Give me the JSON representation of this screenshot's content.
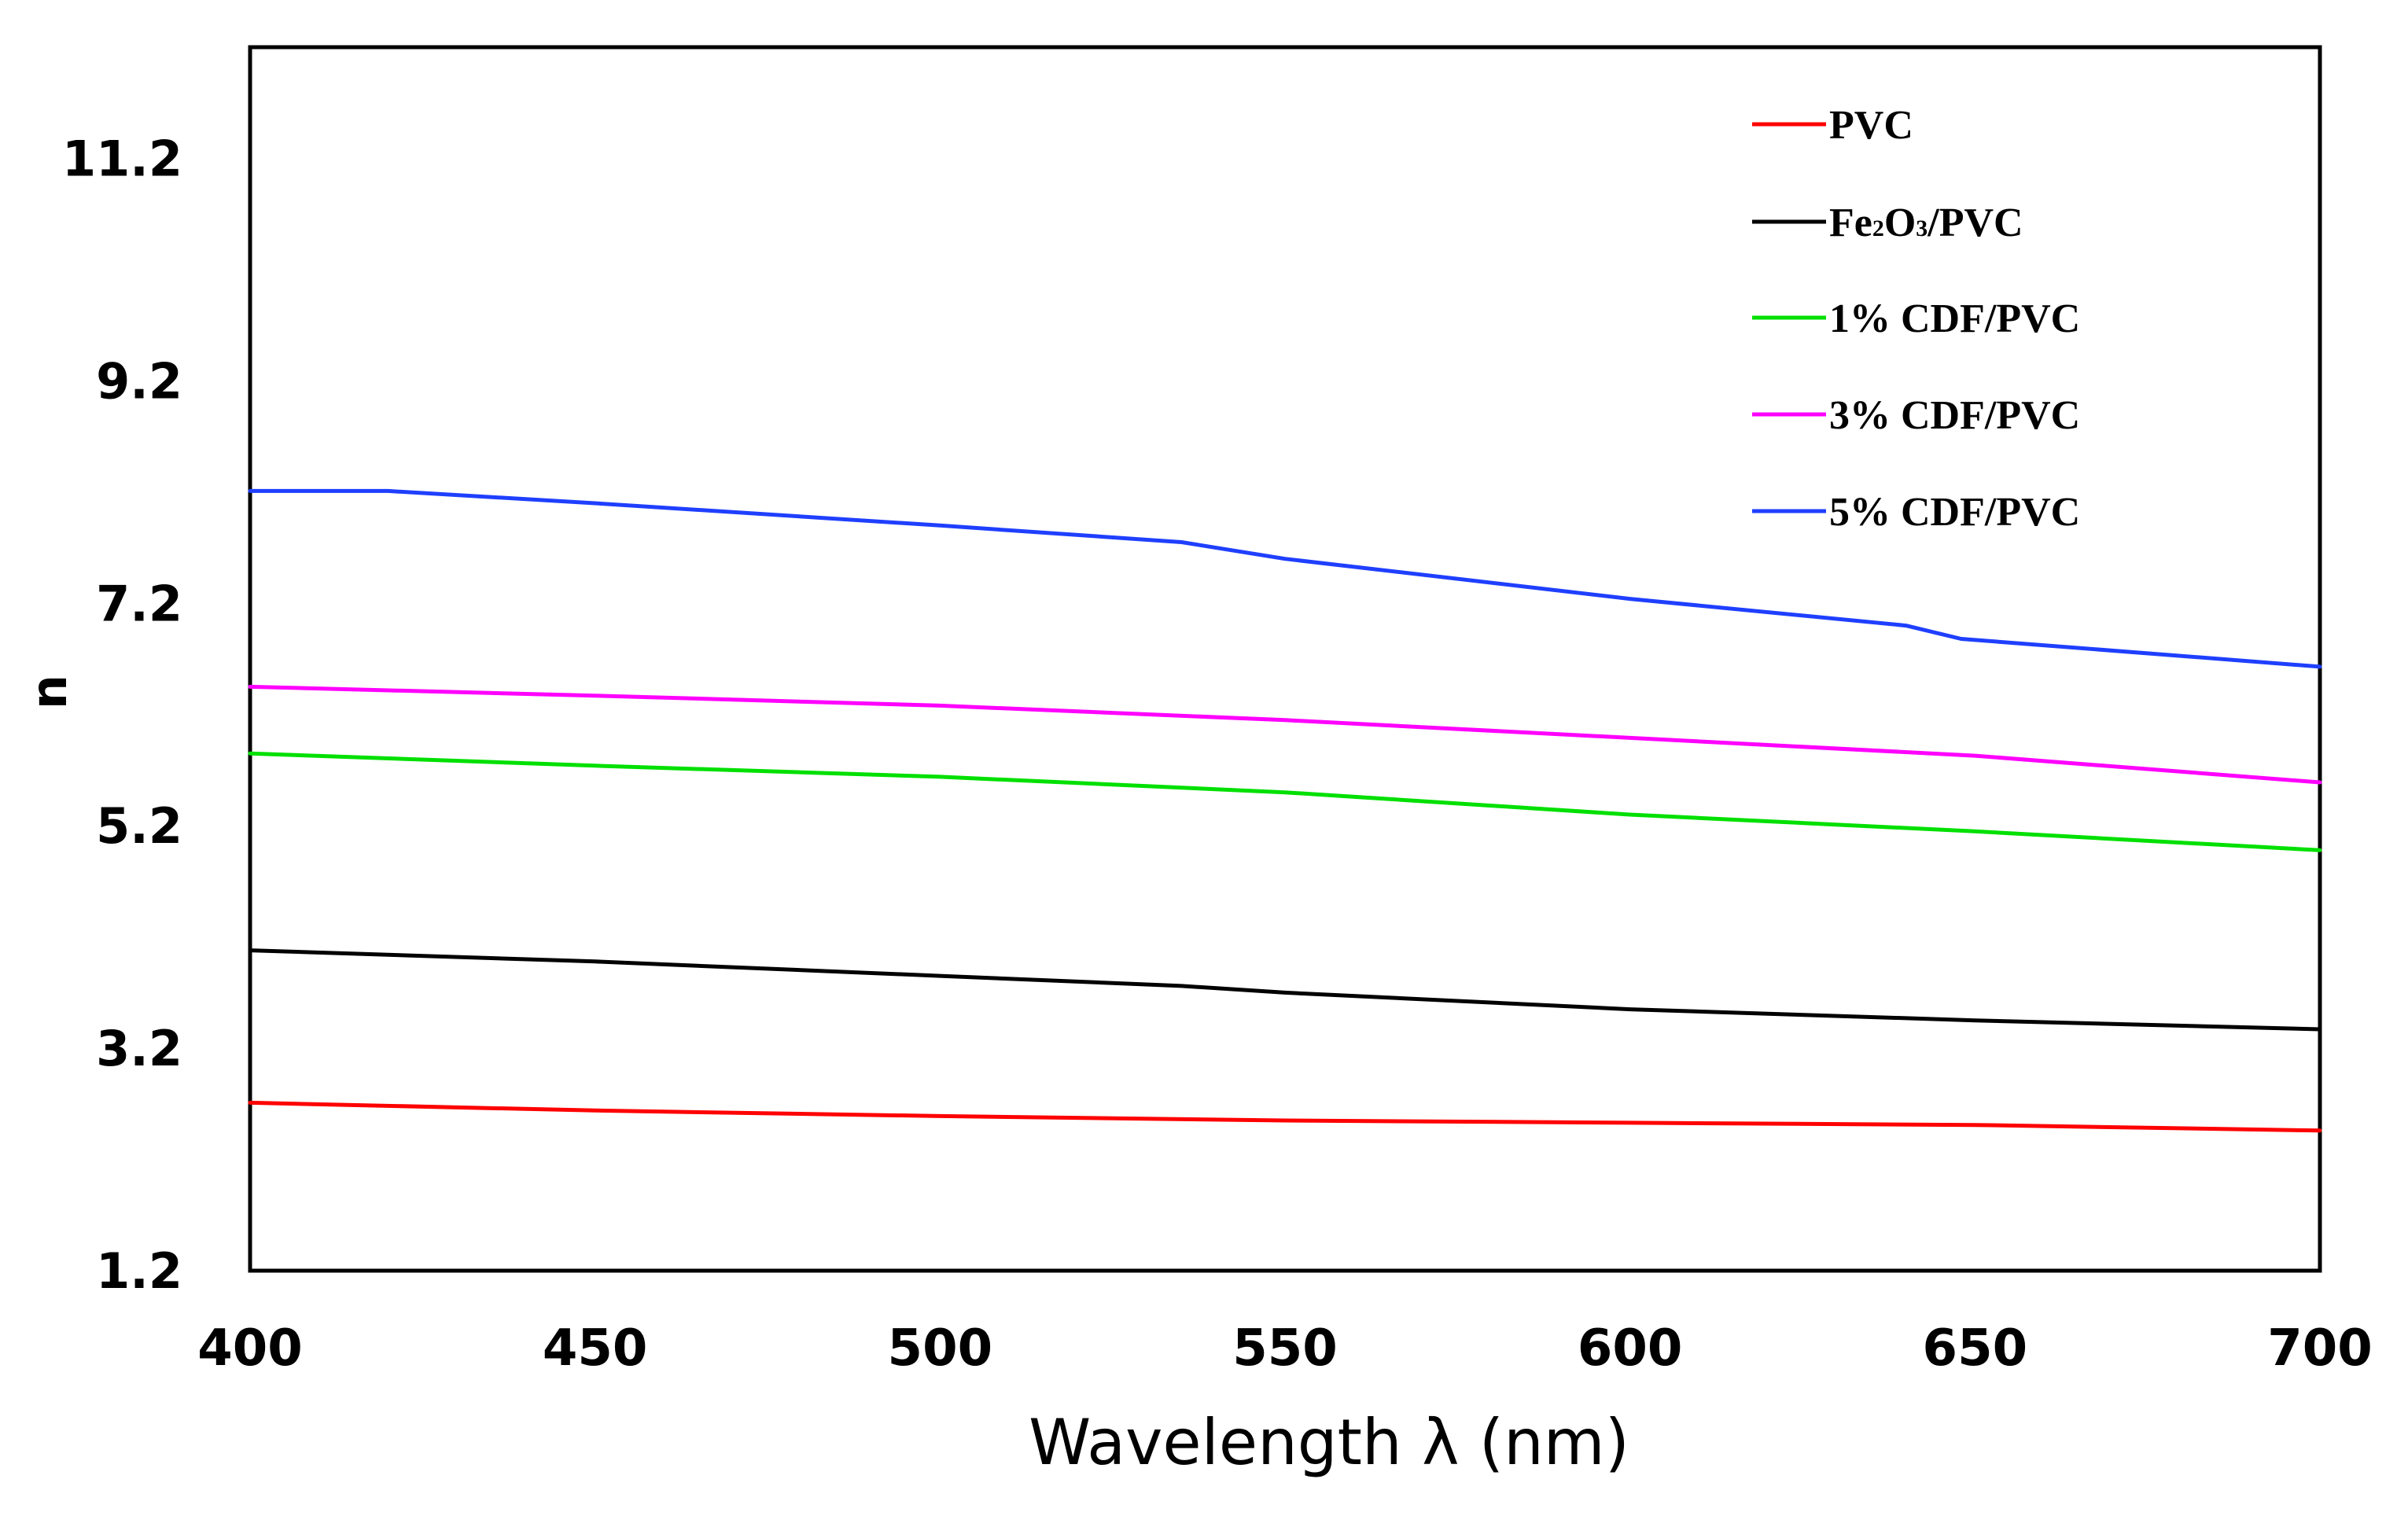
{
  "chart_data": {
    "type": "line",
    "title": "",
    "xlabel": "Wavelength  λ (nm)",
    "ylabel": "n",
    "xlim": [
      400,
      700
    ],
    "ylim": [
      1.2,
      12.2
    ],
    "x_ticks": [
      400,
      450,
      500,
      550,
      600,
      650,
      700
    ],
    "y_ticks": [
      1.2,
      3.2,
      5.2,
      7.2,
      9.2,
      11.2
    ],
    "x_tick_labels": [
      "400",
      "450",
      "500",
      "550",
      "600",
      "650",
      "700"
    ],
    "y_tick_labels": [
      "1.2",
      "3.2",
      "5.2",
      "7.2",
      "9.2",
      "11.2"
    ],
    "grid": false,
    "legend_position": "top-right",
    "series": [
      {
        "name": "PVC",
        "label_main": "PVC",
        "label_sub": "",
        "label_rest": "",
        "color": "#ff0000",
        "x": [
          400,
          450,
          500,
          550,
          600,
          650,
          700
        ],
        "values": [
          2.71,
          2.64,
          2.59,
          2.55,
          2.53,
          2.51,
          2.46
        ]
      },
      {
        "name": "Fe2O3/PVC",
        "label_main": "Fe",
        "label_sub": "2",
        "label_rest": "O",
        "label_sub2": "3",
        "label_tail": "/PVC",
        "color": "#000000",
        "x": [
          400,
          450,
          500,
          535,
          550,
          600,
          650,
          700
        ],
        "values": [
          4.08,
          3.98,
          3.85,
          3.76,
          3.7,
          3.55,
          3.45,
          3.37
        ]
      },
      {
        "name": "1% CDF/PVC",
        "label_main": "1% CDF/PVC",
        "label_sub": "",
        "label_rest": "",
        "color": "#00e000",
        "x": [
          400,
          450,
          500,
          550,
          600,
          650,
          700
        ],
        "values": [
          5.85,
          5.74,
          5.64,
          5.5,
          5.3,
          5.15,
          4.98
        ]
      },
      {
        "name": "3% CDF/PVC",
        "label_main": "3% CDF/PVC",
        "label_sub": "",
        "label_rest": "",
        "color": "#ff00ff",
        "x": [
          400,
          450,
          500,
          550,
          600,
          650,
          700
        ],
        "values": [
          6.45,
          6.37,
          6.28,
          6.15,
          5.99,
          5.83,
          5.59
        ]
      },
      {
        "name": "5% CDF/PVC",
        "label_main": "5% CDF/PVC",
        "label_sub": "",
        "label_rest": "",
        "color": "#1f3fff",
        "x": [
          400,
          420,
          450,
          500,
          535,
          550,
          600,
          640,
          648,
          700
        ],
        "values": [
          8.21,
          8.21,
          8.1,
          7.9,
          7.75,
          7.6,
          7.24,
          7.0,
          6.88,
          6.63
        ]
      }
    ]
  }
}
